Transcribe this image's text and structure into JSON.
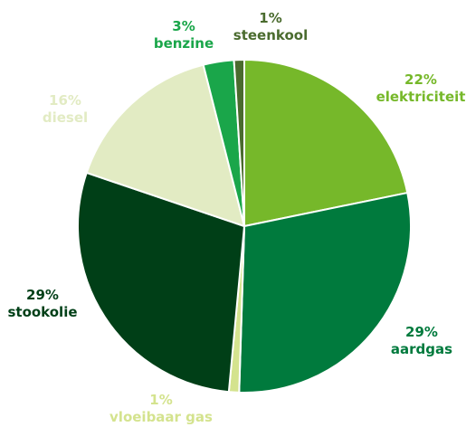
{
  "chart_data": {
    "type": "pie",
    "title": "",
    "slices": [
      {
        "label": "elektriciteit",
        "value": 22,
        "value_label": "22%",
        "color": "#76b82a"
      },
      {
        "label": "aardgas",
        "value": 29,
        "value_label": "29%",
        "color": "#007a3d"
      },
      {
        "label": "vloeibaar gas",
        "value": 1,
        "value_label": "1%",
        "color": "#d4e38e"
      },
      {
        "label": "stookolie",
        "value": 29,
        "value_label": "29%",
        "color": "#003f17"
      },
      {
        "label": "diesel",
        "value": 16,
        "value_label": "16%",
        "color": "#e2ebc3"
      },
      {
        "label": "benzine",
        "value": 3,
        "value_label": "3%",
        "color": "#1aa64a"
      },
      {
        "label": "steenkool",
        "value": 1,
        "value_label": "1%",
        "color": "#4a6b2e"
      }
    ],
    "start": "12 o'clock",
    "direction": "clockwise",
    "legend": "none"
  }
}
